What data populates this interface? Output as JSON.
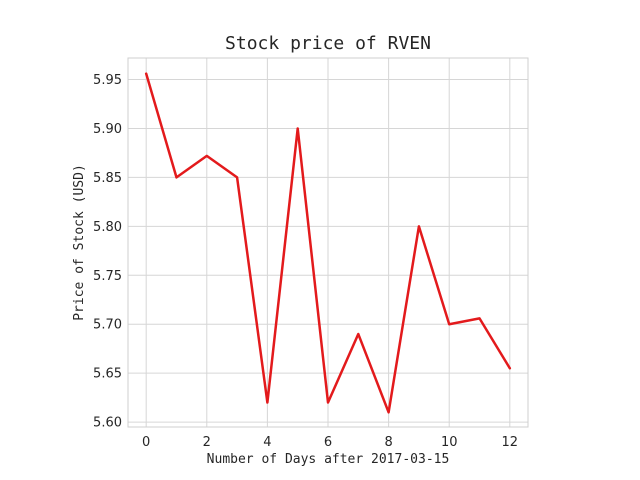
{
  "chart_data": {
    "type": "line",
    "title": "Stock price of RVEN",
    "xlabel": "Number of Days after 2017-03-15",
    "ylabel": "Price of Stock (USD)",
    "x": [
      0,
      1,
      2,
      3,
      4,
      5,
      6,
      7,
      8,
      9,
      10,
      11,
      12
    ],
    "series": [
      {
        "values": [
          5.956,
          5.85,
          5.872,
          5.85,
          5.62,
          5.9,
          5.62,
          5.69,
          5.61,
          5.8,
          5.7,
          5.706,
          5.655
        ],
        "color": "#e31a1c"
      }
    ],
    "xlim": [
      -0.6,
      12.6
    ],
    "ylim": [
      5.595,
      5.972
    ],
    "xticks": [
      0,
      2,
      4,
      6,
      8,
      10,
      12
    ],
    "xtick_labels": [
      "0",
      "2",
      "4",
      "6",
      "8",
      "10",
      "12"
    ],
    "yticks": [
      5.6,
      5.65,
      5.7,
      5.75,
      5.8,
      5.85,
      5.9,
      5.95
    ],
    "ytick_labels": [
      "5.60",
      "5.65",
      "5.70",
      "5.75",
      "5.80",
      "5.85",
      "5.90",
      "5.95"
    ],
    "grid": true,
    "legend": "none"
  }
}
